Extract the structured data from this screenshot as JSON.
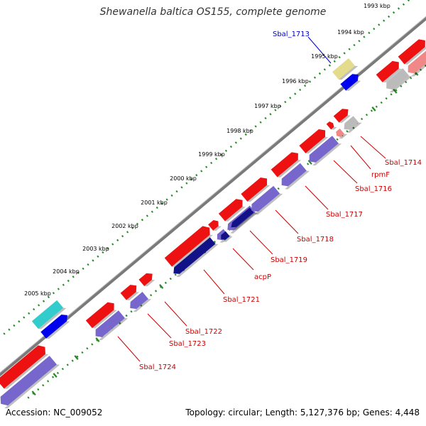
{
  "title": "Shewanella baltica OS155, complete genome",
  "footer": {
    "accession": "Accession: NC_009052",
    "summary": "Topology: circular; Length: 5,127,376 bp; Genes: 4,448"
  },
  "colors": {
    "backbone": "#7a7a7a",
    "tick_dots": "#228b22",
    "label_red": "#cc0000",
    "label_blue": "#0000cc"
  },
  "scale_ticks": [
    {
      "label": "1993 kbp"
    },
    {
      "label": "1994 kbp"
    },
    {
      "label": "1995 kbp"
    },
    {
      "label": "1996 kbp"
    },
    {
      "label": "1997 kbp"
    },
    {
      "label": "1998 kbp"
    },
    {
      "label": "1999 kbp"
    },
    {
      "label": "2000 kbp"
    },
    {
      "label": "2001 kbp"
    },
    {
      "label": "2002 kbp"
    },
    {
      "label": "2003 kbp"
    },
    {
      "label": "2004 kbp"
    },
    {
      "label": "2005 kbp"
    }
  ],
  "gene_labels": [
    {
      "name": "Sbal_1713",
      "color": "#0000cc"
    },
    {
      "name": "Sbal_1714",
      "color": "#cc0000"
    },
    {
      "name": "rpmF",
      "color": "#cc0000"
    },
    {
      "name": "Sbal_1716",
      "color": "#cc0000"
    },
    {
      "name": "Sbal_1717",
      "color": "#cc0000"
    },
    {
      "name": "Sbal_1718",
      "color": "#cc0000"
    },
    {
      "name": "Sbal_1719",
      "color": "#cc0000"
    },
    {
      "name": "acpP",
      "color": "#cc0000"
    },
    {
      "name": "Sbal_1721",
      "color": "#cc0000"
    },
    {
      "name": "Sbal_1722",
      "color": "#cc0000"
    },
    {
      "name": "Sbal_1723",
      "color": "#cc0000"
    },
    {
      "name": "Sbal_1724",
      "color": "#cc0000"
    }
  ]
}
